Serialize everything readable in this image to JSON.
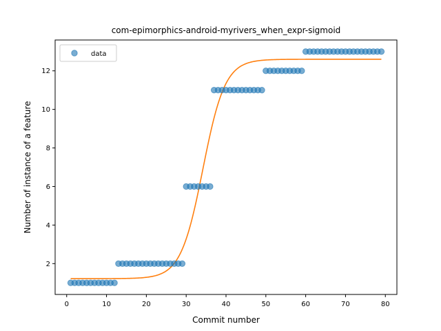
{
  "chart_data": {
    "type": "scatter",
    "title": "com-epimorphics-android-myrivers_when_expr-sigmoid",
    "xlabel": "Commit number",
    "ylabel": "Number of instance of a feature",
    "xlim": [
      -2.9,
      82.9
    ],
    "ylim": [
      0.4,
      13.6
    ],
    "xticks": [
      0,
      10,
      20,
      30,
      40,
      50,
      60,
      70,
      80
    ],
    "yticks": [
      2,
      4,
      6,
      8,
      10,
      12
    ],
    "grid": false,
    "legend": {
      "placement": "top-left",
      "entries": [
        "data"
      ]
    },
    "series": [
      {
        "name": "data",
        "kind": "points",
        "color": "#1f77b4",
        "x": [
          1,
          2,
          3,
          4,
          5,
          6,
          7,
          8,
          9,
          10,
          11,
          12,
          13,
          14,
          15,
          16,
          17,
          18,
          19,
          20,
          21,
          22,
          23,
          24,
          25,
          26,
          27,
          28,
          29,
          30,
          31,
          32,
          33,
          34,
          35,
          36,
          37,
          38,
          39,
          40,
          41,
          42,
          43,
          44,
          45,
          46,
          47,
          48,
          49,
          50,
          51,
          52,
          53,
          54,
          55,
          56,
          57,
          58,
          59,
          60,
          61,
          62,
          63,
          64,
          65,
          66,
          67,
          68,
          69,
          70,
          71,
          72,
          73,
          74,
          75,
          76,
          77,
          78,
          79
        ],
        "y": [
          1,
          1,
          1,
          1,
          1,
          1,
          1,
          1,
          1,
          1,
          1,
          1,
          2,
          2,
          2,
          2,
          2,
          2,
          2,
          2,
          2,
          2,
          2,
          2,
          2,
          2,
          2,
          2,
          2,
          6,
          6,
          6,
          6,
          6,
          6,
          6,
          11,
          11,
          11,
          11,
          11,
          11,
          11,
          11,
          11,
          11,
          11,
          11,
          11,
          12,
          12,
          12,
          12,
          12,
          12,
          12,
          12,
          12,
          12,
          13,
          13,
          13,
          13,
          13,
          13,
          13,
          13,
          13,
          13,
          13,
          13,
          13,
          13,
          13,
          13,
          13,
          13,
          13,
          13
        ]
      },
      {
        "kind": "sigmoid-fit",
        "color": "#ff7f0e",
        "x_range": [
          1,
          79
        ],
        "lower": 1.22,
        "upper": 12.6,
        "midpoint": 34.2,
        "steepness": 0.36
      }
    ]
  }
}
